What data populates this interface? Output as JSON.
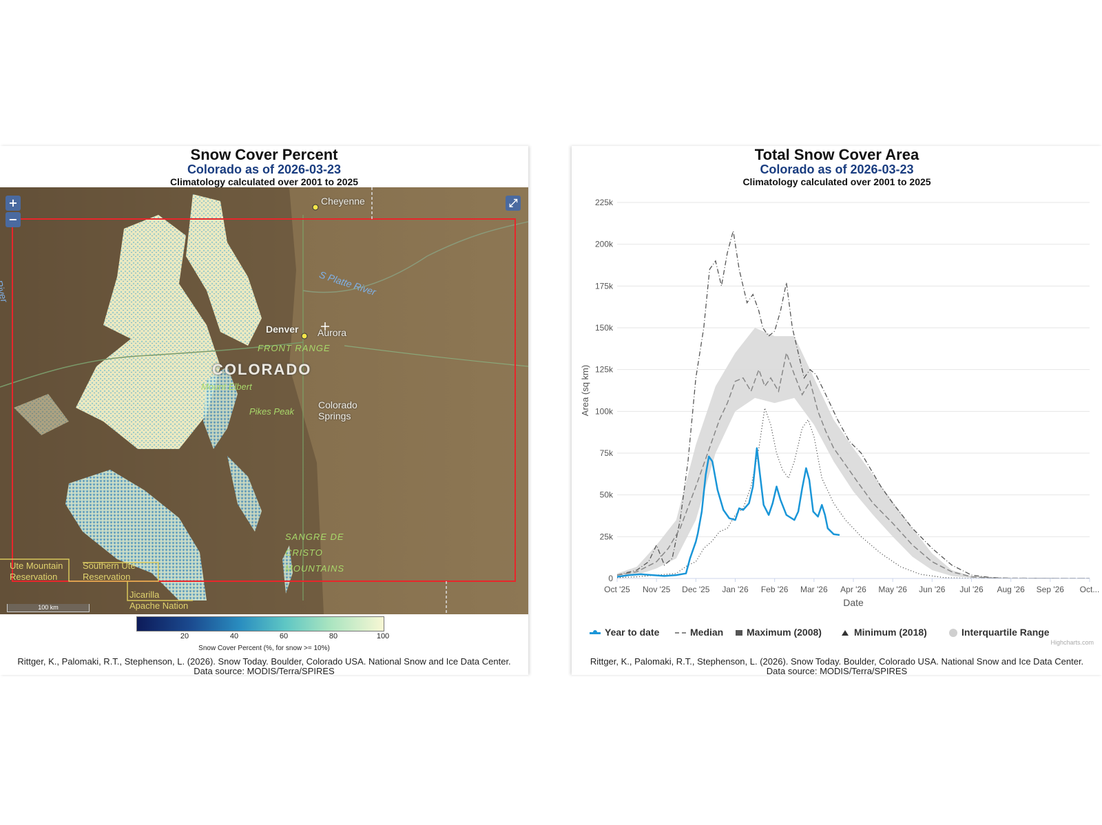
{
  "map_panel": {
    "title": "Snow Cover Percent",
    "subtitle_region": "Colorado",
    "subtitle_date": "as of 2026-03-23",
    "climatology": "Climatology calculated over 2001 to 2025",
    "zoom_in_label": "+",
    "zoom_out_label": "−",
    "fullscreen_label": "⤢",
    "labels": {
      "cheyenne": "Cheyenne",
      "denver": "Denver",
      "aurora": "Aurora",
      "front_range": "FRONT RANGE",
      "state": "COLORADO",
      "mount_elbert": "Mount Elbert",
      "pikes_peak": "Pikes Peak",
      "colorado_springs_1": "Colorado",
      "colorado_springs_2": "Springs",
      "s_platte": "S Platte River",
      "green_river": "Green River",
      "sangre_1": "SANGRE DE",
      "sangre_2": "CRISTO",
      "sangre_3": "MOUNTAINS",
      "ute_1": "Ute Mountain",
      "ute_2": "Reservation",
      "southern_ute_1": "Southern Ute",
      "southern_ute_2": "Reservation",
      "jicarilla_1": "Jicarilla",
      "jicarilla_2": "Apache Nation"
    },
    "scale_label": "100 km",
    "colorbar": {
      "ticks": [
        "20",
        "40",
        "60",
        "80",
        "100"
      ],
      "label": "Snow Cover Percent (%, for snow >= 10%)"
    },
    "credit_1": "Rittger, K., Palomaki, R.T., Stephenson, L. (2026). Snow Today. Boulder, Colorado USA. National Snow and Ice Data Center.",
    "credit_2": "Data source: MODIS/Terra/SPIRES"
  },
  "chart_panel": {
    "title": "Total Snow Cover Area",
    "subtitle_region": "Colorado",
    "subtitle_date": "as of 2026-03-23",
    "climatology": "Climatology calculated over 2001 to 2025",
    "credit_1": "Rittger, K., Palomaki, R.T., Stephenson, L. (2026). Snow Today. Boulder, Colorado USA. National Snow and Ice Data Center.",
    "credit_2": "Data source: MODIS/Terra/SPIRES",
    "highcharts_credit": "Highcharts.com"
  },
  "chart_data": {
    "type": "line",
    "title": "Total Snow Cover Area",
    "subtitle": "Colorado as of 2026-03-23",
    "xlabel": "Date",
    "ylabel": "Area (sq km)",
    "ylim": [
      0,
      225000
    ],
    "yticks": [
      0,
      25000,
      50000,
      75000,
      100000,
      125000,
      150000,
      175000,
      200000,
      225000
    ],
    "ytick_labels": [
      "0",
      "25k",
      "50k",
      "75k",
      "100k",
      "125k",
      "150k",
      "175k",
      "200k",
      "225k"
    ],
    "xtick_labels": [
      "Oct '25",
      "Nov '25",
      "Dec '25",
      "Jan '26",
      "Feb '26",
      "Mar '26",
      "Apr '26",
      "May '26",
      "Jun '26",
      "Jul '26",
      "Aug '26",
      "Sep '26",
      "Oct..."
    ],
    "x_unit": "months since Oct 2025",
    "grid": true,
    "legend_position": "bottom",
    "series": [
      {
        "name": "Year to date",
        "color": "#1a96d8",
        "style": "solid",
        "points": [
          [
            0,
            1000
          ],
          [
            0.3,
            2000
          ],
          [
            0.6,
            2500
          ],
          [
            0.9,
            2000
          ],
          [
            1.2,
            1500
          ],
          [
            1.5,
            2000
          ],
          [
            1.75,
            3000
          ],
          [
            1.85,
            12000
          ],
          [
            2.0,
            22000
          ],
          [
            2.05,
            27000
          ],
          [
            2.15,
            40000
          ],
          [
            2.25,
            62000
          ],
          [
            2.33,
            73000
          ],
          [
            2.42,
            70000
          ],
          [
            2.55,
            53000
          ],
          [
            2.7,
            41000
          ],
          [
            2.85,
            36000
          ],
          [
            3.0,
            35000
          ],
          [
            3.1,
            42000
          ],
          [
            3.2,
            41000
          ],
          [
            3.35,
            45000
          ],
          [
            3.45,
            55000
          ],
          [
            3.55,
            78000
          ],
          [
            3.62,
            64000
          ],
          [
            3.72,
            44000
          ],
          [
            3.85,
            38000
          ],
          [
            3.95,
            45000
          ],
          [
            4.05,
            55000
          ],
          [
            4.15,
            47000
          ],
          [
            4.3,
            38000
          ],
          [
            4.5,
            35000
          ],
          [
            4.6,
            40000
          ],
          [
            4.7,
            54000
          ],
          [
            4.8,
            66000
          ],
          [
            4.88,
            59000
          ],
          [
            4.98,
            40000
          ],
          [
            5.1,
            37000
          ],
          [
            5.2,
            44000
          ],
          [
            5.28,
            38000
          ],
          [
            5.35,
            30000
          ],
          [
            5.5,
            26500
          ],
          [
            5.65,
            26000
          ]
        ]
      },
      {
        "name": "Median",
        "color": "#888888",
        "style": "dashed",
        "points": [
          [
            0,
            2000
          ],
          [
            0.5,
            4000
          ],
          [
            1.0,
            10000
          ],
          [
            1.3,
            18000
          ],
          [
            1.6,
            30000
          ],
          [
            2.0,
            55000
          ],
          [
            2.3,
            75000
          ],
          [
            2.6,
            95000
          ],
          [
            2.8,
            105000
          ],
          [
            3.0,
            118000
          ],
          [
            3.2,
            120000
          ],
          [
            3.4,
            112000
          ],
          [
            3.6,
            125000
          ],
          [
            3.75,
            115000
          ],
          [
            3.9,
            120000
          ],
          [
            4.1,
            112000
          ],
          [
            4.3,
            135000
          ],
          [
            4.5,
            122000
          ],
          [
            4.7,
            110000
          ],
          [
            4.9,
            118000
          ],
          [
            5.1,
            100000
          ],
          [
            5.3,
            88000
          ],
          [
            5.5,
            78000
          ],
          [
            5.8,
            68000
          ],
          [
            6.1,
            58000
          ],
          [
            6.5,
            45000
          ],
          [
            7.0,
            33000
          ],
          [
            7.5,
            20000
          ],
          [
            8.0,
            10000
          ],
          [
            8.5,
            4000
          ],
          [
            9.0,
            1000
          ],
          [
            9.5,
            300
          ],
          [
            10,
            150
          ],
          [
            11,
            100
          ],
          [
            12,
            100
          ]
        ]
      },
      {
        "name": "Maximum (2008)",
        "color": "#555555",
        "style": "dashdot",
        "points": [
          [
            0,
            2000
          ],
          [
            0.5,
            5000
          ],
          [
            0.8,
            10000
          ],
          [
            1.0,
            20000
          ],
          [
            1.2,
            8000
          ],
          [
            1.4,
            12000
          ],
          [
            1.6,
            35000
          ],
          [
            1.8,
            70000
          ],
          [
            2.0,
            120000
          ],
          [
            2.2,
            150000
          ],
          [
            2.35,
            185000
          ],
          [
            2.5,
            190000
          ],
          [
            2.65,
            175000
          ],
          [
            2.8,
            195000
          ],
          [
            2.95,
            208000
          ],
          [
            3.1,
            185000
          ],
          [
            3.3,
            165000
          ],
          [
            3.45,
            170000
          ],
          [
            3.6,
            160000
          ],
          [
            3.7,
            150000
          ],
          [
            3.85,
            145000
          ],
          [
            4.0,
            148000
          ],
          [
            4.15,
            160000
          ],
          [
            4.3,
            177000
          ],
          [
            4.45,
            150000
          ],
          [
            4.6,
            135000
          ],
          [
            4.75,
            120000
          ],
          [
            4.9,
            125000
          ],
          [
            5.05,
            122000
          ],
          [
            5.3,
            110000
          ],
          [
            5.6,
            95000
          ],
          [
            5.9,
            82000
          ],
          [
            6.2,
            75000
          ],
          [
            6.45,
            65000
          ],
          [
            6.7,
            55000
          ],
          [
            7.0,
            45000
          ],
          [
            7.5,
            30000
          ],
          [
            8.0,
            18000
          ],
          [
            8.5,
            8000
          ],
          [
            9.0,
            2000
          ],
          [
            9.5,
            500
          ],
          [
            10,
            200
          ],
          [
            11,
            100
          ],
          [
            12,
            100
          ]
        ]
      },
      {
        "name": "Minimum (2018)",
        "color": "#333333",
        "style": "dotted",
        "points": [
          [
            0,
            500
          ],
          [
            0.5,
            1000
          ],
          [
            1.0,
            2000
          ],
          [
            1.5,
            3000
          ],
          [
            1.8,
            8000
          ],
          [
            2.0,
            10000
          ],
          [
            2.2,
            18000
          ],
          [
            2.4,
            22000
          ],
          [
            2.6,
            28000
          ],
          [
            2.8,
            30000
          ],
          [
            3.0,
            38000
          ],
          [
            3.2,
            42000
          ],
          [
            3.4,
            55000
          ],
          [
            3.6,
            78000
          ],
          [
            3.75,
            102000
          ],
          [
            3.9,
            92000
          ],
          [
            4.05,
            75000
          ],
          [
            4.2,
            65000
          ],
          [
            4.35,
            60000
          ],
          [
            4.5,
            70000
          ],
          [
            4.7,
            90000
          ],
          [
            4.85,
            95000
          ],
          [
            5.0,
            85000
          ],
          [
            5.2,
            60000
          ],
          [
            5.5,
            45000
          ],
          [
            5.8,
            35000
          ],
          [
            6.2,
            25000
          ],
          [
            6.7,
            15000
          ],
          [
            7.2,
            7000
          ],
          [
            7.7,
            2500
          ],
          [
            8.3,
            500
          ],
          [
            9,
            100
          ],
          [
            10,
            100
          ],
          [
            12,
            100
          ]
        ]
      },
      {
        "name": "Interquartile Range",
        "color": "#d9d9d9",
        "style": "area",
        "low": [
          [
            0,
            1000
          ],
          [
            0.5,
            2000
          ],
          [
            1.0,
            6000
          ],
          [
            1.5,
            12000
          ],
          [
            2.0,
            35000
          ],
          [
            2.5,
            75000
          ],
          [
            3.0,
            100000
          ],
          [
            3.5,
            108000
          ],
          [
            4.0,
            105000
          ],
          [
            4.5,
            108000
          ],
          [
            5.0,
            92000
          ],
          [
            5.5,
            70000
          ],
          [
            6.0,
            52000
          ],
          [
            6.5,
            38000
          ],
          [
            7.0,
            25000
          ],
          [
            7.5,
            13000
          ],
          [
            8.0,
            5000
          ],
          [
            8.5,
            1500
          ],
          [
            9.0,
            300
          ],
          [
            10,
            100
          ],
          [
            12,
            100
          ]
        ],
        "high": [
          [
            0,
            3000
          ],
          [
            0.5,
            7000
          ],
          [
            1.0,
            20000
          ],
          [
            1.5,
            35000
          ],
          [
            2.0,
            80000
          ],
          [
            2.5,
            115000
          ],
          [
            3.0,
            135000
          ],
          [
            3.5,
            150000
          ],
          [
            4.0,
            145000
          ],
          [
            4.5,
            145000
          ],
          [
            5.0,
            120000
          ],
          [
            5.5,
            95000
          ],
          [
            6.0,
            78000
          ],
          [
            6.5,
            62000
          ],
          [
            7.0,
            46000
          ],
          [
            7.5,
            30000
          ],
          [
            8.0,
            15000
          ],
          [
            8.5,
            5000
          ],
          [
            9.0,
            1500
          ],
          [
            10,
            300
          ],
          [
            12,
            200
          ]
        ]
      }
    ]
  }
}
